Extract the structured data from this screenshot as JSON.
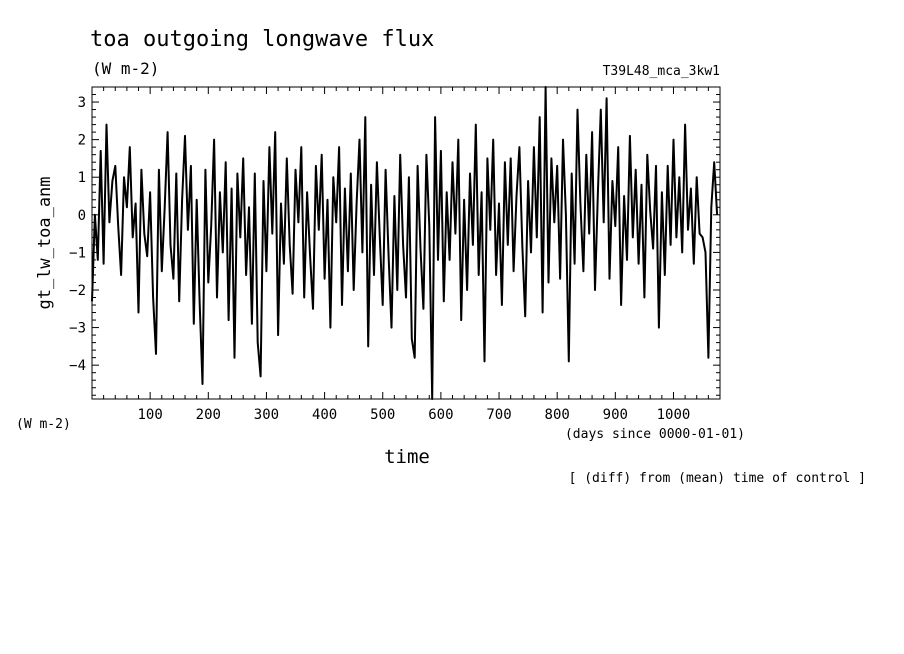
{
  "chart_data": {
    "type": "line",
    "title": "toa outgoing longwave flux",
    "title_units": "(W m-2)",
    "run_label": "T39L48_mca_3kw1",
    "ylabel": "gt_lw_toa_anm",
    "y_units": "(W m-2)",
    "xlabel": "time",
    "x_units": "(days since 0000-01-01)",
    "note": "[ (diff) from (mean) time of control ]",
    "xlim": [
      0,
      1080
    ],
    "ylim": [
      -4.9,
      3.4
    ],
    "x_ticks": [
      100,
      200,
      300,
      400,
      500,
      600,
      700,
      800,
      900,
      1000
    ],
    "y_ticks": [
      3,
      2,
      1,
      0,
      -1,
      -2,
      -3,
      -4
    ],
    "grid": false,
    "series": [
      {
        "values": [
          [
            0,
            -2.3
          ],
          [
            5,
            0.0
          ],
          [
            10,
            -1.2
          ],
          [
            15,
            1.7
          ],
          [
            20,
            -1.3
          ],
          [
            25,
            2.4
          ],
          [
            30,
            -0.2
          ],
          [
            35,
            0.9
          ],
          [
            40,
            1.3
          ],
          [
            45,
            -0.3
          ],
          [
            50,
            -1.6
          ],
          [
            55,
            1.0
          ],
          [
            60,
            0.2
          ],
          [
            65,
            1.8
          ],
          [
            70,
            -0.6
          ],
          [
            75,
            0.3
          ],
          [
            80,
            -2.6
          ],
          [
            85,
            1.2
          ],
          [
            90,
            -0.5
          ],
          [
            95,
            -1.1
          ],
          [
            100,
            0.6
          ],
          [
            105,
            -2.2
          ],
          [
            110,
            -3.7
          ],
          [
            115,
            1.2
          ],
          [
            120,
            -1.5
          ],
          [
            125,
            0.2
          ],
          [
            130,
            2.2
          ],
          [
            135,
            -0.8
          ],
          [
            140,
            -1.7
          ],
          [
            145,
            1.1
          ],
          [
            150,
            -2.3
          ],
          [
            155,
            0.4
          ],
          [
            160,
            2.1
          ],
          [
            165,
            -0.4
          ],
          [
            170,
            1.3
          ],
          [
            175,
            -2.9
          ],
          [
            180,
            0.4
          ],
          [
            185,
            -2.3
          ],
          [
            190,
            -4.5
          ],
          [
            195,
            1.2
          ],
          [
            200,
            -1.8
          ],
          [
            205,
            -0.3
          ],
          [
            210,
            2.0
          ],
          [
            215,
            -2.2
          ],
          [
            220,
            0.6
          ],
          [
            225,
            -1.0
          ],
          [
            230,
            1.4
          ],
          [
            235,
            -2.8
          ],
          [
            240,
            0.7
          ],
          [
            245,
            -3.8
          ],
          [
            250,
            1.1
          ],
          [
            255,
            -0.6
          ],
          [
            260,
            1.5
          ],
          [
            265,
            -1.6
          ],
          [
            270,
            0.2
          ],
          [
            275,
            -2.9
          ],
          [
            280,
            1.1
          ],
          [
            285,
            -3.4
          ],
          [
            290,
            -4.3
          ],
          [
            295,
            0.9
          ],
          [
            300,
            -1.5
          ],
          [
            305,
            1.8
          ],
          [
            310,
            -0.5
          ],
          [
            315,
            2.2
          ],
          [
            320,
            -3.2
          ],
          [
            325,
            0.3
          ],
          [
            330,
            -1.3
          ],
          [
            335,
            1.5
          ],
          [
            340,
            -0.8
          ],
          [
            345,
            -2.1
          ],
          [
            350,
            1.2
          ],
          [
            355,
            -0.2
          ],
          [
            360,
            1.8
          ],
          [
            365,
            -2.2
          ],
          [
            370,
            0.6
          ],
          [
            375,
            -1.1
          ],
          [
            380,
            -2.5
          ],
          [
            385,
            1.3
          ],
          [
            390,
            -0.4
          ],
          [
            395,
            1.6
          ],
          [
            400,
            -1.7
          ],
          [
            405,
            0.4
          ],
          [
            410,
            -3.0
          ],
          [
            415,
            1.0
          ],
          [
            420,
            -0.2
          ],
          [
            425,
            1.8
          ],
          [
            430,
            -2.4
          ],
          [
            435,
            0.7
          ],
          [
            440,
            -1.5
          ],
          [
            445,
            1.1
          ],
          [
            450,
            -2.0
          ],
          [
            455,
            0.3
          ],
          [
            460,
            2.0
          ],
          [
            465,
            -1.0
          ],
          [
            470,
            2.6
          ],
          [
            475,
            -3.5
          ],
          [
            480,
            0.8
          ],
          [
            485,
            -1.6
          ],
          [
            490,
            1.4
          ],
          [
            495,
            -0.6
          ],
          [
            500,
            -2.4
          ],
          [
            505,
            1.2
          ],
          [
            510,
            -1.1
          ],
          [
            515,
            -3.0
          ],
          [
            520,
            0.5
          ],
          [
            525,
            -2.0
          ],
          [
            530,
            1.6
          ],
          [
            535,
            -0.8
          ],
          [
            540,
            -2.2
          ],
          [
            545,
            1.0
          ],
          [
            550,
            -3.3
          ],
          [
            555,
            -3.8
          ],
          [
            560,
            1.3
          ],
          [
            565,
            -0.9
          ],
          [
            570,
            -2.5
          ],
          [
            575,
            1.6
          ],
          [
            580,
            -0.3
          ],
          [
            585,
            -4.9
          ],
          [
            590,
            2.6
          ],
          [
            595,
            -1.2
          ],
          [
            600,
            1.7
          ],
          [
            605,
            -2.3
          ],
          [
            610,
            0.6
          ],
          [
            615,
            -1.2
          ],
          [
            620,
            1.4
          ],
          [
            625,
            -0.5
          ],
          [
            630,
            2.0
          ],
          [
            635,
            -2.8
          ],
          [
            640,
            0.4
          ],
          [
            645,
            -2.0
          ],
          [
            650,
            1.1
          ],
          [
            655,
            -0.8
          ],
          [
            660,
            2.4
          ],
          [
            665,
            -1.6
          ],
          [
            670,
            0.6
          ],
          [
            675,
            -3.9
          ],
          [
            680,
            1.5
          ],
          [
            685,
            -0.4
          ],
          [
            690,
            2.0
          ],
          [
            695,
            -1.6
          ],
          [
            700,
            0.3
          ],
          [
            705,
            -2.4
          ],
          [
            710,
            1.4
          ],
          [
            715,
            -0.8
          ],
          [
            720,
            1.5
          ],
          [
            725,
            -1.5
          ],
          [
            730,
            0.5
          ],
          [
            735,
            1.8
          ],
          [
            740,
            -0.8
          ],
          [
            745,
            -2.7
          ],
          [
            750,
            0.9
          ],
          [
            755,
            -1.0
          ],
          [
            760,
            1.8
          ],
          [
            765,
            -0.6
          ],
          [
            770,
            2.6
          ],
          [
            775,
            -2.6
          ],
          [
            780,
            3.4
          ],
          [
            785,
            -1.8
          ],
          [
            790,
            1.5
          ],
          [
            795,
            -0.2
          ],
          [
            800,
            1.3
          ],
          [
            805,
            -1.7
          ],
          [
            810,
            2.0
          ],
          [
            815,
            0.0
          ],
          [
            820,
            -3.9
          ],
          [
            825,
            1.1
          ],
          [
            830,
            -1.3
          ],
          [
            835,
            2.8
          ],
          [
            840,
            0.3
          ],
          [
            845,
            -1.5
          ],
          [
            850,
            1.6
          ],
          [
            855,
            -0.5
          ],
          [
            860,
            2.2
          ],
          [
            865,
            -2.0
          ],
          [
            870,
            0.6
          ],
          [
            875,
            2.8
          ],
          [
            880,
            -0.2
          ],
          [
            885,
            3.1
          ],
          [
            890,
            -1.7
          ],
          [
            895,
            0.9
          ],
          [
            900,
            -0.3
          ],
          [
            905,
            1.8
          ],
          [
            910,
            -2.4
          ],
          [
            915,
            0.5
          ],
          [
            920,
            -1.2
          ],
          [
            925,
            2.1
          ],
          [
            930,
            -0.6
          ],
          [
            935,
            1.2
          ],
          [
            940,
            -1.3
          ],
          [
            945,
            0.8
          ],
          [
            950,
            -2.2
          ],
          [
            955,
            1.6
          ],
          [
            960,
            0.1
          ],
          [
            965,
            -0.9
          ],
          [
            970,
            1.3
          ],
          [
            975,
            -3.0
          ],
          [
            980,
            0.6
          ],
          [
            985,
            -1.6
          ],
          [
            990,
            1.3
          ],
          [
            995,
            -0.8
          ],
          [
            1000,
            2.0
          ],
          [
            1005,
            -0.6
          ],
          [
            1010,
            1.0
          ],
          [
            1015,
            -1.0
          ],
          [
            1020,
            2.4
          ],
          [
            1025,
            -0.4
          ],
          [
            1030,
            0.7
          ],
          [
            1035,
            -1.3
          ],
          [
            1040,
            1.0
          ],
          [
            1045,
            -0.5
          ],
          [
            1050,
            -0.6
          ],
          [
            1055,
            -1.0
          ],
          [
            1060,
            -3.8
          ],
          [
            1065,
            0.2
          ],
          [
            1070,
            1.4
          ],
          [
            1075,
            0.0
          ]
        ]
      }
    ]
  }
}
